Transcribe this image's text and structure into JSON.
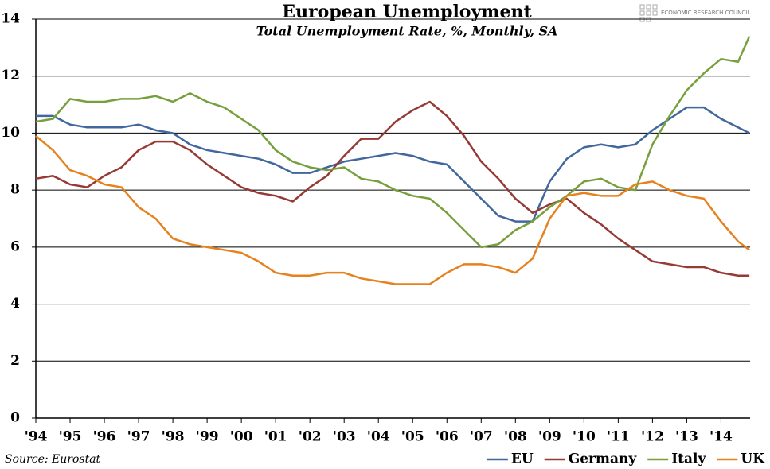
{
  "chart_data": {
    "type": "line",
    "title": "European Unemployment",
    "subtitle": "Total Unemployment Rate, %, Monthly, SA",
    "source": "Source: Eurostat",
    "logo": "ECONOMIC RESEARCH COUNCIL",
    "x": [
      1994,
      1994.5,
      1995,
      1995.5,
      1996,
      1996.5,
      1997,
      1997.5,
      1998,
      1998.5,
      1999,
      1999.5,
      2000,
      2000.5,
      2001,
      2001.5,
      2002,
      2002.5,
      2003,
      2003.5,
      2004,
      2004.5,
      2005,
      2005.5,
      2006,
      2006.5,
      2007,
      2007.5,
      2008,
      2008.5,
      2009,
      2009.5,
      2010,
      2010.5,
      2011,
      2011.5,
      2012,
      2012.5,
      2013,
      2013.5,
      2014,
      2014.5,
      2014.83
    ],
    "series": [
      {
        "name": "EU",
        "color": "#41679e",
        "values": [
          10.6,
          10.6,
          10.3,
          10.2,
          10.2,
          10.2,
          10.3,
          10.1,
          10.0,
          9.6,
          9.4,
          9.3,
          9.2,
          9.1,
          8.9,
          8.6,
          8.6,
          8.8,
          9.0,
          9.1,
          9.2,
          9.3,
          9.2,
          9.0,
          8.9,
          8.3,
          7.7,
          7.1,
          6.9,
          6.9,
          8.3,
          9.1,
          9.5,
          9.6,
          9.5,
          9.6,
          10.1,
          10.5,
          10.9,
          10.9,
          10.5,
          10.2,
          10.0
        ]
      },
      {
        "name": "Germany",
        "color": "#963a36",
        "values": [
          8.4,
          8.5,
          8.2,
          8.1,
          8.5,
          8.8,
          9.4,
          9.7,
          9.7,
          9.4,
          8.9,
          8.5,
          8.1,
          7.9,
          7.8,
          7.6,
          8.1,
          8.5,
          9.2,
          9.8,
          9.8,
          10.4,
          10.8,
          11.1,
          10.6,
          9.9,
          9.0,
          8.4,
          7.7,
          7.2,
          7.5,
          7.7,
          7.2,
          6.8,
          6.3,
          5.9,
          5.5,
          5.4,
          5.3,
          5.3,
          5.1,
          5.0,
          5.0
        ]
      },
      {
        "name": "Italy",
        "color": "#77a03c",
        "values": [
          10.4,
          10.5,
          11.2,
          11.1,
          11.1,
          11.2,
          11.2,
          11.3,
          11.1,
          11.4,
          11.1,
          10.9,
          10.5,
          10.1,
          9.4,
          9.0,
          8.8,
          8.7,
          8.8,
          8.4,
          8.3,
          8.0,
          7.8,
          7.7,
          7.2,
          6.6,
          6.0,
          6.1,
          6.6,
          6.9,
          7.4,
          7.8,
          8.3,
          8.4,
          8.1,
          8.0,
          9.6,
          10.6,
          11.5,
          12.1,
          12.6,
          12.5,
          13.4
        ]
      },
      {
        "name": "UK",
        "color": "#e5821f",
        "values": [
          9.9,
          9.4,
          8.7,
          8.5,
          8.2,
          8.1,
          7.4,
          7.0,
          6.3,
          6.1,
          6.0,
          5.9,
          5.8,
          5.5,
          5.1,
          5.0,
          5.0,
          5.1,
          5.1,
          4.9,
          4.8,
          4.7,
          4.7,
          4.7,
          5.1,
          5.4,
          5.4,
          5.3,
          5.1,
          5.6,
          7.0,
          7.8,
          7.9,
          7.8,
          7.8,
          8.2,
          8.3,
          8.0,
          7.8,
          7.7,
          6.9,
          6.2,
          5.9
        ]
      }
    ],
    "xlim": [
      1994,
      2014.85
    ],
    "xticks": [
      {
        "value": 1994,
        "label": "'94"
      },
      {
        "value": 1995,
        "label": "'95"
      },
      {
        "value": 1996,
        "label": "'96"
      },
      {
        "value": 1997,
        "label": "'97"
      },
      {
        "value": 1998,
        "label": "'98"
      },
      {
        "value": 1999,
        "label": "'99"
      },
      {
        "value": 2000,
        "label": "'00"
      },
      {
        "value": 2001,
        "label": "'01"
      },
      {
        "value": 2002,
        "label": "'02"
      },
      {
        "value": 2003,
        "label": "'03"
      },
      {
        "value": 2004,
        "label": "'04"
      },
      {
        "value": 2005,
        "label": "'05"
      },
      {
        "value": 2006,
        "label": "'06"
      },
      {
        "value": 2007,
        "label": "'07"
      },
      {
        "value": 2008,
        "label": "'08"
      },
      {
        "value": 2009,
        "label": "'09"
      },
      {
        "value": 2010,
        "label": "'10"
      },
      {
        "value": 2011,
        "label": "'11"
      },
      {
        "value": 2012,
        "label": "'12"
      },
      {
        "value": 2013,
        "label": "'13"
      },
      {
        "value": 2014,
        "label": "'14"
      }
    ],
    "ylim": [
      0,
      14
    ],
    "yticks": [
      0,
      2,
      4,
      6,
      8,
      10,
      12,
      14
    ],
    "grid": true
  }
}
